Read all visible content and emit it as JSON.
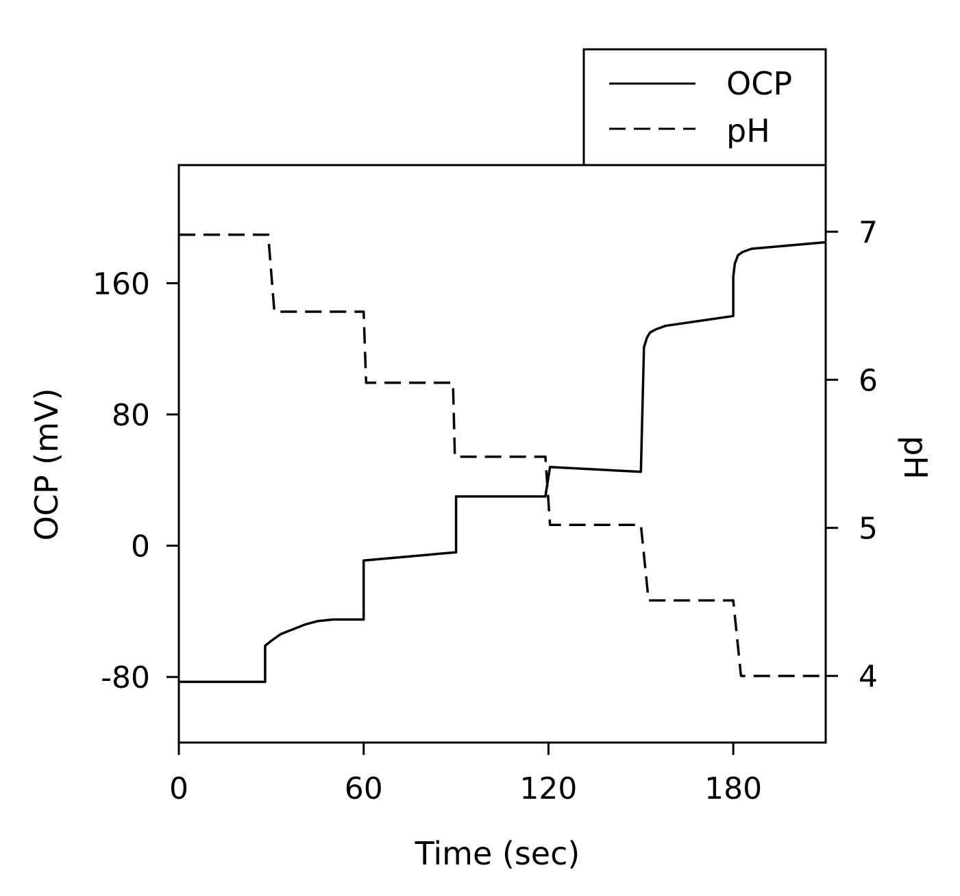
{
  "chart_data": {
    "type": "line",
    "title": "",
    "xlabel": "Time (sec)",
    "ylabel_left": "OCP (mV)",
    "ylabel_right": "pH",
    "xlim": [
      0,
      210
    ],
    "ylim_left": [
      -120,
      232
    ],
    "ylim_right": [
      3.55,
      7.45
    ],
    "x_ticks": [
      "0",
      "60",
      "120",
      "180"
    ],
    "y_left_ticks": [
      "-80",
      "0",
      "80",
      "160"
    ],
    "y_right_ticks": [
      "4",
      "5",
      "6",
      "7"
    ],
    "legend": {
      "position": "top-right, outside plot",
      "entries": [
        {
          "label": "OCP",
          "style": "solid"
        },
        {
          "label": "pH",
          "style": "dashed"
        }
      ]
    },
    "series": [
      {
        "name": "OCP",
        "axis": "left",
        "style": "solid",
        "color": "#000000",
        "x": [
          0,
          28,
          28,
          30,
          33,
          37,
          41,
          45,
          50,
          55,
          60,
          60,
          90,
          90,
          119,
          120.5,
          120.5,
          150,
          151,
          152,
          153,
          155,
          158,
          180,
          180,
          180.5,
          181.5,
          183,
          186,
          210
        ],
        "y": [
          -83,
          -83,
          -61,
          -58,
          -54,
          -51,
          -48,
          -46,
          -45,
          -45,
          -45,
          -9,
          -4,
          30,
          30,
          48,
          48,
          45,
          121,
          127,
          130,
          132,
          134,
          140,
          164,
          172,
          177,
          179,
          181,
          185
        ]
      },
      {
        "name": "pH",
        "axis": "right",
        "style": "dashed",
        "color": "#000000",
        "x": [
          0,
          29,
          31,
          60,
          60.8,
          89,
          89.6,
          119,
          120.5,
          150,
          152.5,
          180,
          182.5,
          210
        ],
        "y": [
          6.98,
          6.98,
          6.46,
          6.46,
          5.98,
          5.98,
          5.48,
          5.48,
          5.02,
          5.02,
          4.51,
          4.51,
          4.0,
          4.0
        ]
      }
    ]
  }
}
